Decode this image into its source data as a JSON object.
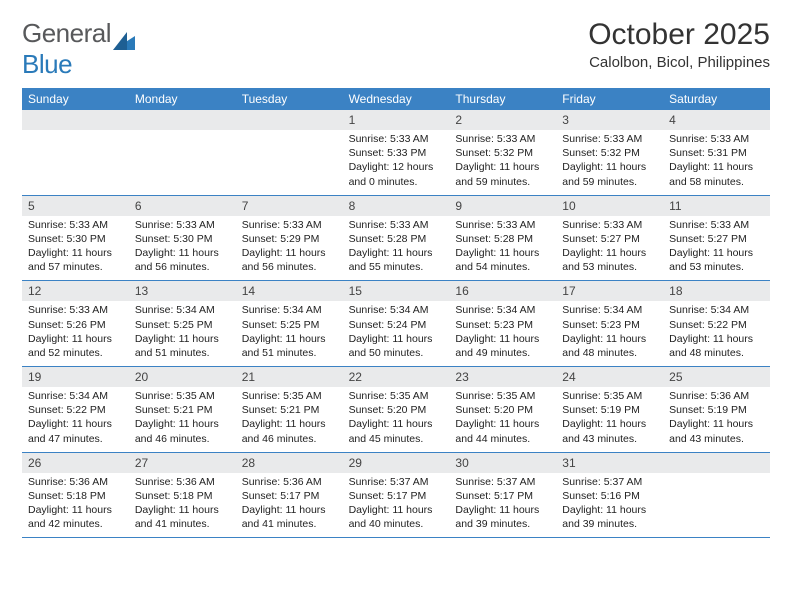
{
  "logo": {
    "word1": "General",
    "word2": "Blue"
  },
  "title": "October 2025",
  "location": "Calolbon, Bicol, Philippines",
  "colors": {
    "header_bg": "#3b82c4",
    "daynum_bg": "#e9eaeb",
    "week_border": "#3b82c4",
    "logo_gray": "#58595b",
    "logo_blue": "#2a7ab9"
  },
  "day_names": [
    "Sunday",
    "Monday",
    "Tuesday",
    "Wednesday",
    "Thursday",
    "Friday",
    "Saturday"
  ],
  "weeks": [
    [
      {
        "n": "",
        "sr": "",
        "ss": "",
        "dl": ""
      },
      {
        "n": "",
        "sr": "",
        "ss": "",
        "dl": ""
      },
      {
        "n": "",
        "sr": "",
        "ss": "",
        "dl": ""
      },
      {
        "n": "1",
        "sr": "Sunrise: 5:33 AM",
        "ss": "Sunset: 5:33 PM",
        "dl": "Daylight: 12 hours and 0 minutes."
      },
      {
        "n": "2",
        "sr": "Sunrise: 5:33 AM",
        "ss": "Sunset: 5:32 PM",
        "dl": "Daylight: 11 hours and 59 minutes."
      },
      {
        "n": "3",
        "sr": "Sunrise: 5:33 AM",
        "ss": "Sunset: 5:32 PM",
        "dl": "Daylight: 11 hours and 59 minutes."
      },
      {
        "n": "4",
        "sr": "Sunrise: 5:33 AM",
        "ss": "Sunset: 5:31 PM",
        "dl": "Daylight: 11 hours and 58 minutes."
      }
    ],
    [
      {
        "n": "5",
        "sr": "Sunrise: 5:33 AM",
        "ss": "Sunset: 5:30 PM",
        "dl": "Daylight: 11 hours and 57 minutes."
      },
      {
        "n": "6",
        "sr": "Sunrise: 5:33 AM",
        "ss": "Sunset: 5:30 PM",
        "dl": "Daylight: 11 hours and 56 minutes."
      },
      {
        "n": "7",
        "sr": "Sunrise: 5:33 AM",
        "ss": "Sunset: 5:29 PM",
        "dl": "Daylight: 11 hours and 56 minutes."
      },
      {
        "n": "8",
        "sr": "Sunrise: 5:33 AM",
        "ss": "Sunset: 5:28 PM",
        "dl": "Daylight: 11 hours and 55 minutes."
      },
      {
        "n": "9",
        "sr": "Sunrise: 5:33 AM",
        "ss": "Sunset: 5:28 PM",
        "dl": "Daylight: 11 hours and 54 minutes."
      },
      {
        "n": "10",
        "sr": "Sunrise: 5:33 AM",
        "ss": "Sunset: 5:27 PM",
        "dl": "Daylight: 11 hours and 53 minutes."
      },
      {
        "n": "11",
        "sr": "Sunrise: 5:33 AM",
        "ss": "Sunset: 5:27 PM",
        "dl": "Daylight: 11 hours and 53 minutes."
      }
    ],
    [
      {
        "n": "12",
        "sr": "Sunrise: 5:33 AM",
        "ss": "Sunset: 5:26 PM",
        "dl": "Daylight: 11 hours and 52 minutes."
      },
      {
        "n": "13",
        "sr": "Sunrise: 5:34 AM",
        "ss": "Sunset: 5:25 PM",
        "dl": "Daylight: 11 hours and 51 minutes."
      },
      {
        "n": "14",
        "sr": "Sunrise: 5:34 AM",
        "ss": "Sunset: 5:25 PM",
        "dl": "Daylight: 11 hours and 51 minutes."
      },
      {
        "n": "15",
        "sr": "Sunrise: 5:34 AM",
        "ss": "Sunset: 5:24 PM",
        "dl": "Daylight: 11 hours and 50 minutes."
      },
      {
        "n": "16",
        "sr": "Sunrise: 5:34 AM",
        "ss": "Sunset: 5:23 PM",
        "dl": "Daylight: 11 hours and 49 minutes."
      },
      {
        "n": "17",
        "sr": "Sunrise: 5:34 AM",
        "ss": "Sunset: 5:23 PM",
        "dl": "Daylight: 11 hours and 48 minutes."
      },
      {
        "n": "18",
        "sr": "Sunrise: 5:34 AM",
        "ss": "Sunset: 5:22 PM",
        "dl": "Daylight: 11 hours and 48 minutes."
      }
    ],
    [
      {
        "n": "19",
        "sr": "Sunrise: 5:34 AM",
        "ss": "Sunset: 5:22 PM",
        "dl": "Daylight: 11 hours and 47 minutes."
      },
      {
        "n": "20",
        "sr": "Sunrise: 5:35 AM",
        "ss": "Sunset: 5:21 PM",
        "dl": "Daylight: 11 hours and 46 minutes."
      },
      {
        "n": "21",
        "sr": "Sunrise: 5:35 AM",
        "ss": "Sunset: 5:21 PM",
        "dl": "Daylight: 11 hours and 46 minutes."
      },
      {
        "n": "22",
        "sr": "Sunrise: 5:35 AM",
        "ss": "Sunset: 5:20 PM",
        "dl": "Daylight: 11 hours and 45 minutes."
      },
      {
        "n": "23",
        "sr": "Sunrise: 5:35 AM",
        "ss": "Sunset: 5:20 PM",
        "dl": "Daylight: 11 hours and 44 minutes."
      },
      {
        "n": "24",
        "sr": "Sunrise: 5:35 AM",
        "ss": "Sunset: 5:19 PM",
        "dl": "Daylight: 11 hours and 43 minutes."
      },
      {
        "n": "25",
        "sr": "Sunrise: 5:36 AM",
        "ss": "Sunset: 5:19 PM",
        "dl": "Daylight: 11 hours and 43 minutes."
      }
    ],
    [
      {
        "n": "26",
        "sr": "Sunrise: 5:36 AM",
        "ss": "Sunset: 5:18 PM",
        "dl": "Daylight: 11 hours and 42 minutes."
      },
      {
        "n": "27",
        "sr": "Sunrise: 5:36 AM",
        "ss": "Sunset: 5:18 PM",
        "dl": "Daylight: 11 hours and 41 minutes."
      },
      {
        "n": "28",
        "sr": "Sunrise: 5:36 AM",
        "ss": "Sunset: 5:17 PM",
        "dl": "Daylight: 11 hours and 41 minutes."
      },
      {
        "n": "29",
        "sr": "Sunrise: 5:37 AM",
        "ss": "Sunset: 5:17 PM",
        "dl": "Daylight: 11 hours and 40 minutes."
      },
      {
        "n": "30",
        "sr": "Sunrise: 5:37 AM",
        "ss": "Sunset: 5:17 PM",
        "dl": "Daylight: 11 hours and 39 minutes."
      },
      {
        "n": "31",
        "sr": "Sunrise: 5:37 AM",
        "ss": "Sunset: 5:16 PM",
        "dl": "Daylight: 11 hours and 39 minutes."
      },
      {
        "n": "",
        "sr": "",
        "ss": "",
        "dl": ""
      }
    ]
  ]
}
